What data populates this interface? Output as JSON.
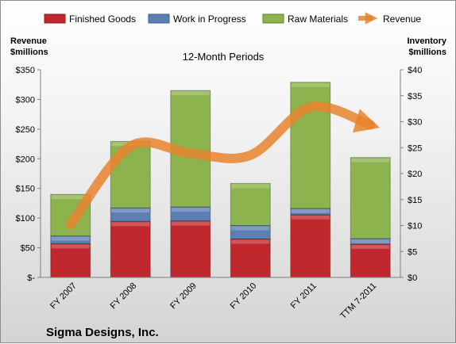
{
  "chart_data": {
    "type": "bar",
    "stacked": true,
    "subtitle": "12-Month Periods",
    "company_label": "Sigma Designs, Inc.",
    "left_axis_title": [
      "Revenue",
      "$millions"
    ],
    "right_axis_title": [
      "Inventory",
      "$millions"
    ],
    "categories": [
      "FY 2007",
      "FY 2008",
      "FY 2009",
      "FY 2010",
      "FY 2011",
      "TTM 7-2011"
    ],
    "left_axis": {
      "range": [
        0,
        350
      ],
      "ticks": [
        0,
        50,
        100,
        150,
        200,
        250,
        300,
        350
      ],
      "tick_labels": [
        "$-",
        "$50",
        "$100",
        "$150",
        "$200",
        "$250",
        "$300",
        "$350"
      ]
    },
    "right_axis": {
      "range": [
        0,
        40
      ],
      "ticks": [
        0,
        5,
        10,
        15,
        20,
        25,
        30,
        35,
        40
      ],
      "tick_labels": [
        "$0",
        "$5",
        "$10",
        "$15",
        "$20",
        "$25",
        "$30",
        "$35",
        "$40"
      ]
    },
    "grid": false,
    "legend_position": "top",
    "series": [
      {
        "name": "Finished Goods",
        "axis": "right",
        "kind": "bar",
        "color": "#c0282d",
        "values": [
          6.5,
          10.8,
          10.9,
          7.4,
          12.1,
          6.4
        ]
      },
      {
        "name": "Work in Progress",
        "axis": "right",
        "kind": "bar",
        "color": "#5b7fb3",
        "values": [
          1.5,
          2.6,
          2.7,
          2.6,
          1.2,
          1.1
        ]
      },
      {
        "name": "Raw Materials",
        "axis": "right",
        "kind": "bar",
        "color": "#8cb34d",
        "values": [
          8.0,
          12.8,
          22.4,
          8.1,
          24.3,
          15.6
        ]
      },
      {
        "name": "Revenue",
        "axis": "left",
        "kind": "line",
        "color": "#e8822e",
        "values": [
          89,
          221,
          209,
          206,
          287,
          257
        ]
      }
    ]
  }
}
